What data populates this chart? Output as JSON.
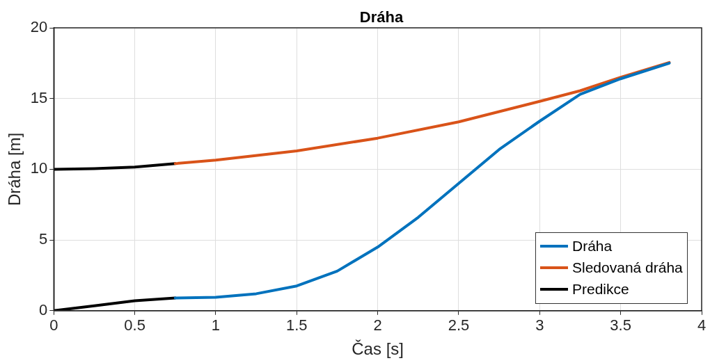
{
  "chart_data": {
    "type": "line",
    "title": "Dráha",
    "xlabel": "Čas [s]",
    "ylabel": "Dráha [m]",
    "xlim": [
      0,
      4
    ],
    "xticks": [
      0,
      0.5,
      1,
      1.5,
      2,
      2.5,
      3,
      3.5,
      4
    ],
    "ylim": [
      0,
      20
    ],
    "yticks": [
      0,
      5,
      10,
      15,
      20
    ],
    "grid": true,
    "legend": "bottom right",
    "marker": "none",
    "line_style": "solid",
    "series": [
      {
        "name": "Dráha",
        "color": "#0072bd",
        "x": [
          0.75,
          1,
          1.25,
          1.5,
          1.75,
          2,
          2.25,
          2.5,
          2.75,
          3,
          3.25,
          3.5,
          3.8
        ],
        "values": [
          0.9,
          0.95,
          1.2,
          1.75,
          2.8,
          4.5,
          6.6,
          9,
          11.4,
          13.4,
          15.3,
          16.4,
          17.5
        ]
      },
      {
        "name": "Sledovaná dráha",
        "color": "#d95319",
        "x": [
          0.75,
          1,
          1.5,
          2,
          2.5,
          3,
          3.25,
          3.5,
          3.8
        ],
        "values": [
          10.4,
          10.65,
          11.3,
          12.2,
          13.35,
          14.8,
          15.55,
          16.5,
          17.55
        ]
      },
      {
        "name": "Predikce",
        "color": "#000000",
        "x": [
          0,
          0.25,
          0.5,
          0.75
        ],
        "values": [
          0,
          0.35,
          0.7,
          0.9
        ]
      },
      {
        "color": "#000000",
        "x": [
          0,
          0.25,
          0.5,
          0.75
        ],
        "values": [
          10,
          10.05,
          10.15,
          10.4
        ]
      }
    ]
  }
}
